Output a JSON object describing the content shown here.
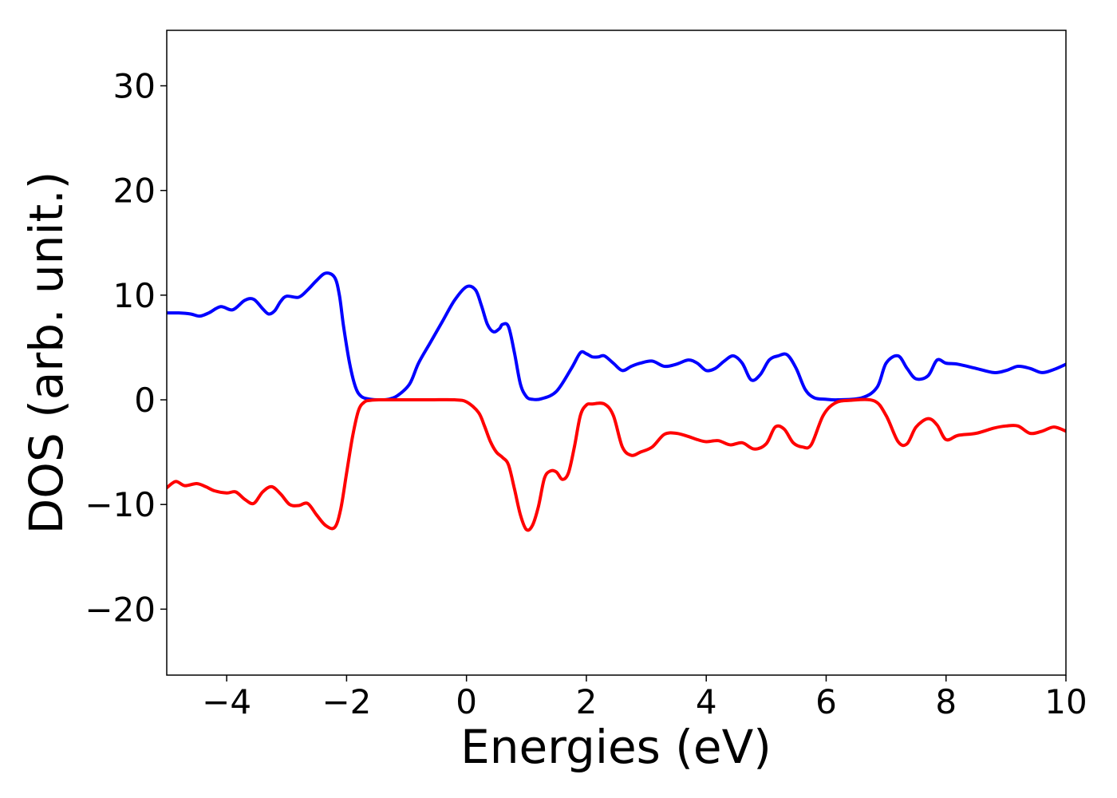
{
  "chart_data": {
    "type": "line",
    "xlabel": "Energies (eV)",
    "ylabel": "DOS (arb. unit.)",
    "xlim": [
      -5,
      10
    ],
    "ylim": [
      -26.3,
      35.3
    ],
    "xticks": [
      -4,
      -2,
      0,
      2,
      4,
      6,
      8,
      10
    ],
    "yticks": [
      -20,
      -10,
      0,
      10,
      20,
      30
    ],
    "xtick_labels": [
      "−4",
      "−2",
      "0",
      "2",
      "4",
      "6",
      "8",
      "10"
    ],
    "ytick_labels": [
      "−20",
      "−10",
      "0",
      "10",
      "20",
      "30"
    ],
    "grid": false,
    "legend": "none",
    "colors": {
      "spin_up": "#0000ff",
      "spin_down": "#ff0000"
    },
    "series": [
      {
        "color": "#0000ff",
        "x": [
          -5.0,
          -4.8,
          -4.6,
          -4.45,
          -4.3,
          -4.1,
          -3.9,
          -3.7,
          -3.55,
          -3.4,
          -3.3,
          -3.2,
          -3.1,
          -3.0,
          -2.8,
          -2.65,
          -2.5,
          -2.35,
          -2.2,
          -2.12,
          -2.05,
          -1.95,
          -1.85,
          -1.75,
          -1.6,
          -1.45,
          -1.3,
          -1.15,
          -0.95,
          -0.8,
          -0.6,
          -0.4,
          -0.2,
          0.0,
          0.15,
          0.25,
          0.35,
          0.45,
          0.55,
          0.6,
          0.7,
          0.8,
          0.9,
          1.0,
          1.1,
          1.25,
          1.5,
          1.75,
          1.9,
          2.0,
          2.1,
          2.2,
          2.3,
          2.45,
          2.6,
          2.75,
          2.9,
          3.1,
          3.3,
          3.5,
          3.7,
          3.85,
          4.0,
          4.15,
          4.3,
          4.45,
          4.6,
          4.75,
          4.9,
          5.05,
          5.2,
          5.35,
          5.5,
          5.65,
          5.8,
          6.0,
          6.2,
          6.6,
          6.85,
          7.0,
          7.2,
          7.35,
          7.5,
          7.7,
          7.85,
          8.0,
          8.2,
          8.5,
          8.8,
          9.0,
          9.2,
          9.4,
          9.6,
          9.8,
          10.0
        ],
        "y": [
          8.3,
          8.3,
          8.2,
          8.0,
          8.3,
          8.9,
          8.6,
          9.5,
          9.6,
          8.7,
          8.2,
          8.5,
          9.4,
          9.9,
          9.8,
          10.5,
          11.4,
          12.1,
          11.7,
          10.0,
          7.0,
          3.5,
          1.2,
          0.3,
          0.05,
          0.0,
          0.05,
          0.4,
          1.5,
          3.5,
          5.5,
          7.5,
          9.5,
          10.8,
          10.5,
          9.0,
          7.2,
          6.5,
          6.8,
          7.2,
          7.0,
          4.5,
          1.5,
          0.3,
          0.05,
          0.1,
          0.8,
          3.0,
          4.5,
          4.4,
          4.1,
          4.1,
          4.2,
          3.5,
          2.8,
          3.2,
          3.5,
          3.7,
          3.2,
          3.4,
          3.8,
          3.5,
          2.8,
          3.0,
          3.7,
          4.2,
          3.5,
          1.9,
          2.4,
          3.8,
          4.2,
          4.3,
          3.0,
          1.0,
          0.2,
          0.05,
          0.0,
          0.2,
          1.2,
          3.5,
          4.2,
          3.0,
          2.0,
          2.3,
          3.8,
          3.5,
          3.4,
          3.0,
          2.6,
          2.8,
          3.2,
          3.0,
          2.6,
          2.9,
          3.4
        ]
      },
      {
        "color": "#ff0000",
        "x": [
          -5.0,
          -4.85,
          -4.7,
          -4.5,
          -4.35,
          -4.2,
          -4.0,
          -3.85,
          -3.7,
          -3.55,
          -3.4,
          -3.25,
          -3.1,
          -2.95,
          -2.8,
          -2.65,
          -2.5,
          -2.35,
          -2.2,
          -2.1,
          -2.0,
          -1.9,
          -1.8,
          -1.7,
          -1.6,
          -1.45,
          -1.3,
          -1.0,
          -0.6,
          -0.2,
          0.0,
          0.2,
          0.3,
          0.4,
          0.5,
          0.6,
          0.7,
          0.8,
          0.9,
          1.0,
          1.1,
          1.2,
          1.3,
          1.4,
          1.5,
          1.6,
          1.7,
          1.8,
          1.9,
          2.0,
          2.1,
          2.3,
          2.45,
          2.6,
          2.75,
          2.9,
          3.1,
          3.3,
          3.5,
          3.7,
          3.85,
          4.0,
          4.2,
          4.4,
          4.6,
          4.8,
          5.0,
          5.15,
          5.3,
          5.45,
          5.6,
          5.75,
          5.95,
          6.15,
          6.4,
          6.8,
          7.0,
          7.2,
          7.35,
          7.5,
          7.7,
          7.85,
          8.0,
          8.2,
          8.5,
          8.8,
          9.0,
          9.2,
          9.4,
          9.6,
          9.8,
          10.0
        ],
        "y": [
          -8.4,
          -7.8,
          -8.2,
          -8.0,
          -8.3,
          -8.7,
          -8.9,
          -8.8,
          -9.5,
          -9.9,
          -8.8,
          -8.3,
          -9.0,
          -10.0,
          -10.1,
          -9.9,
          -11.0,
          -12.0,
          -12.2,
          -10.5,
          -7.0,
          -3.5,
          -1.0,
          -0.2,
          -0.05,
          0.0,
          0.0,
          0.0,
          0.0,
          0.0,
          -0.2,
          -1.2,
          -2.5,
          -4.0,
          -5.0,
          -5.5,
          -6.2,
          -8.5,
          -11.0,
          -12.4,
          -12.0,
          -10.2,
          -7.5,
          -6.8,
          -6.9,
          -7.6,
          -7.0,
          -4.5,
          -1.5,
          -0.5,
          -0.4,
          -0.4,
          -1.5,
          -4.5,
          -5.3,
          -5.0,
          -4.5,
          -3.3,
          -3.2,
          -3.5,
          -3.8,
          -4.0,
          -3.9,
          -4.3,
          -4.1,
          -4.7,
          -4.2,
          -2.6,
          -2.8,
          -4.1,
          -4.5,
          -4.3,
          -1.5,
          -0.3,
          -0.05,
          -0.1,
          -1.5,
          -4.0,
          -4.2,
          -2.6,
          -1.8,
          -2.4,
          -3.8,
          -3.4,
          -3.2,
          -2.7,
          -2.5,
          -2.5,
          -3.2,
          -3.0,
          -2.6,
          -3.0
        ]
      }
    ]
  }
}
